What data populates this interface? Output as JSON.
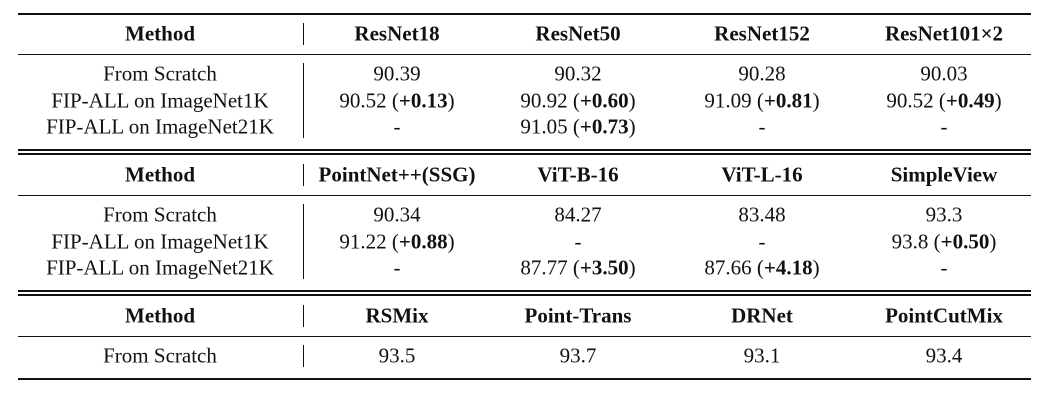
{
  "sections": [
    {
      "header": [
        "Method",
        "ResNet18",
        "ResNet50",
        "ResNet152",
        "ResNet101×2"
      ],
      "rows": [
        {
          "label": "From Scratch",
          "cells": [
            [
              "90.39"
            ],
            [
              "90.32"
            ],
            [
              "90.28"
            ],
            [
              "90.03"
            ]
          ]
        },
        {
          "label": "FIP-ALL on ImageNet1K",
          "cells": [
            [
              "90.52 (",
              "+0.13",
              ")"
            ],
            [
              "90.92 (",
              "+0.60",
              ")"
            ],
            [
              "91.09 (",
              "+0.81",
              ")"
            ],
            [
              "90.52 (",
              "+0.49",
              ")"
            ]
          ]
        },
        {
          "label": "FIP-ALL on ImageNet21K",
          "cells": [
            [
              "-"
            ],
            [
              "91.05 (",
              "+0.73",
              ")"
            ],
            [
              "-"
            ],
            [
              "-"
            ]
          ]
        }
      ]
    },
    {
      "header": [
        "Method",
        "PointNet++(SSG)",
        "ViT-B-16",
        "ViT-L-16",
        "SimpleView"
      ],
      "rows": [
        {
          "label": "From Scratch",
          "cells": [
            [
              "90.34"
            ],
            [
              "84.27"
            ],
            [
              "83.48"
            ],
            [
              "93.3"
            ]
          ]
        },
        {
          "label": "FIP-ALL on ImageNet1K",
          "cells": [
            [
              "91.22 (",
              "+0.88",
              ")"
            ],
            [
              "-"
            ],
            [
              "-"
            ],
            [
              "93.8 (",
              "+0.50",
              ")"
            ]
          ]
        },
        {
          "label": "FIP-ALL on ImageNet21K",
          "cells": [
            [
              "-"
            ],
            [
              "87.77 (",
              "+3.50",
              ")"
            ],
            [
              "87.66 (",
              "+4.18",
              ")"
            ],
            [
              "-"
            ]
          ]
        }
      ]
    },
    {
      "header": [
        "Method",
        "RSMix",
        "Point-Trans",
        "DRNet",
        "PointCutMix"
      ],
      "rows": [
        {
          "label": "From Scratch",
          "cells": [
            [
              "93.5"
            ],
            [
              "93.7"
            ],
            [
              "93.1"
            ],
            [
              "93.4"
            ]
          ]
        }
      ]
    }
  ]
}
